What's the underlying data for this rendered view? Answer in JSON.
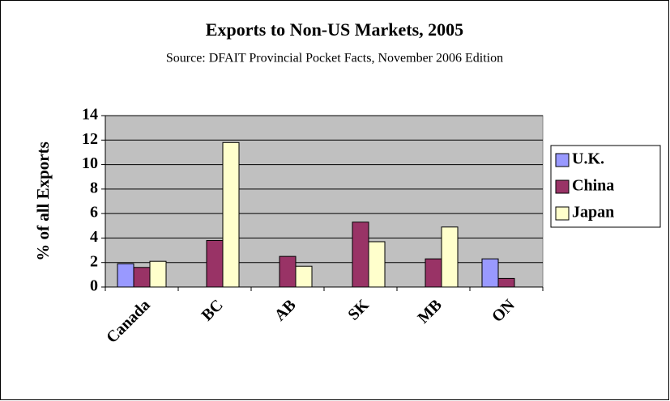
{
  "chart_data": {
    "type": "bar",
    "title": "Exports to Non-US Markets, 2005",
    "subtitle": "Source: DFAIT Provincial Pocket Facts, November 2006 Edition",
    "y_label": "% of all Exports",
    "categories": [
      "Canada",
      "BC",
      "AB",
      "SK",
      "MB",
      "ON"
    ],
    "series": [
      {
        "name": "U.K.",
        "color": "#9999ff",
        "values": [
          1.9,
          null,
          null,
          null,
          null,
          2.3
        ]
      },
      {
        "name": "China",
        "color": "#993366",
        "values": [
          1.6,
          3.8,
          2.5,
          5.3,
          2.3,
          0.7
        ]
      },
      {
        "name": "Japan",
        "color": "#ffffcc",
        "values": [
          2.1,
          11.8,
          1.7,
          3.7,
          4.9,
          null
        ]
      }
    ],
    "ylim": [
      0,
      14
    ],
    "yticks": [
      0,
      2,
      4,
      6,
      8,
      10,
      12,
      14
    ],
    "grid": true,
    "legend": "right"
  }
}
